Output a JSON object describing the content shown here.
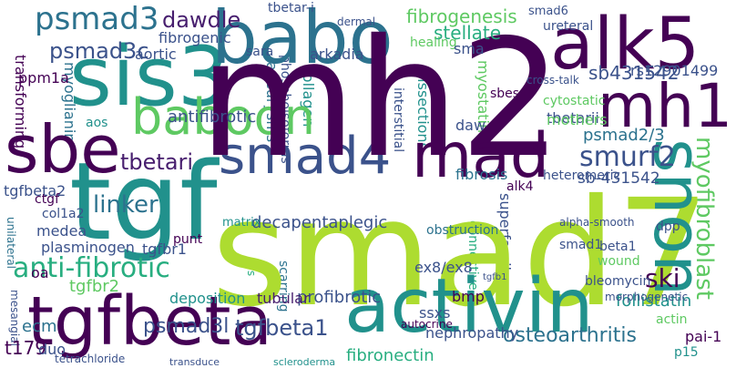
{
  "cloud": {
    "mh2": "mh2",
    "smad7": "smad7",
    "tgf": "tgf",
    "sis3": "sis3",
    "sbe": "sbe",
    "tgfbeta": "tgfbeta",
    "activin": "activin",
    "babo": "babo",
    "alk5": "alk5",
    "mad": "mad",
    "mh1": "mh1",
    "snon": "snon",
    "smad4": "smad4",
    "baboon": "baboon",
    "psmad3": "psmad3",
    "anti_fibrotic": "anti-fibrotic",
    "smurf2": "smurf2",
    "myofibroblast": "myofibroblast",
    "ski": "ski",
    "tgfbeta1": "tgfbeta1",
    "psmad3l": "psmad3l",
    "psmad3c": "psmad3c",
    "dawdle": "dawdle",
    "fibrogenesis": "fibrogenesis",
    "sb431542": "sb431542",
    "psmad2_3": "psmad2/3",
    "sb_431542": "sb-431542",
    "linker": "linker",
    "tbetari": "tbetari",
    "decapentaplegic": "decapentaplegic",
    "follistatin": "follistatin",
    "ex8": "ex8/ex8",
    "osteoarthritis": "osteoarthritis",
    "nephropathy": "nephropathy",
    "fibronectin": "fibronectin",
    "profibrotic": "profibrotic",
    "tubular": "tubular",
    "ssxs": "ssxs",
    "bmp": "bmp",
    "actin": "actin",
    "pai1": "pai-1",
    "p15": "p15",
    "t179": "t179",
    "duo": "duo",
    "tetrachloride": "tetrachloride",
    "scleroderma": "scleroderma",
    "transduce": "transduce",
    "ecm": "ecm",
    "oa": "oa",
    "tgfbr2": "tgfbr2",
    "deposition": "deposition",
    "plasminogen": "plasminogen",
    "tgfbr1": "tgfbr1",
    "medea": "medea",
    "col1a2": "col1a2",
    "ctgf": "ctgf",
    "tgfbeta2": "tgfbeta2",
    "matrix": "matrix",
    "punt": "punt",
    "aos": "aos",
    "antifibrotic": "antifibrotic",
    "fibrogenic": "fibrogenic",
    "aortic": "aortic",
    "ppm1a": "ppm1a",
    "myoglianin": "myoglianin",
    "transforming": "transforming",
    "tbetar_i": "tbetar-i",
    "dermal": "dermal",
    "smad6": "smad6",
    "ureteral": "ureteral",
    "rs12901499": "rs12901499",
    "stellate": "stellate",
    "healing": "healing",
    "sara": "sara",
    "arkadia": "arkadia",
    "sma": "sma",
    "aneurysms": "aneurysms",
    "collagen": "collagen",
    "phosphoisoforms": "phosphoisoforms",
    "myostatin": "myostatin",
    "interstitial": "interstitial",
    "dissections": "dissections",
    "sbes": "sbes",
    "cross_talk": "cross-talk",
    "cytostatic": "cytostatic",
    "tbetarii": "tbetarii",
    "mothers": "mothers",
    "daw": "daw",
    "fibrosis": "fibrosis",
    "heteromeric": "heteromeric",
    "alk4": "alk4",
    "connective": "connective",
    "superfamily": "superfamily",
    "obstruction": "obstruction",
    "alpha_smooth": "alpha-smooth",
    "dpp": "dpp",
    "smad1": "smad1",
    "wound": "wound",
    "beta1": "beta1",
    "bleomycin": "bleomycin",
    "morphogenetic": "morphogenetic",
    "cfs": "cfs",
    "scarring": "scarring",
    "autocrine": "autocrine",
    "tgfb1": "tgfb1",
    "mesangial": "mesangial",
    "unilateral": "unilateral"
  },
  "colors": {
    "dark_purple": "#440154",
    "blue": "#3b528b",
    "teal_blue": "#2c728e",
    "teal": "#21918c",
    "green_teal": "#28ae80",
    "green": "#5ec962",
    "yellow_green": "#addc30"
  }
}
